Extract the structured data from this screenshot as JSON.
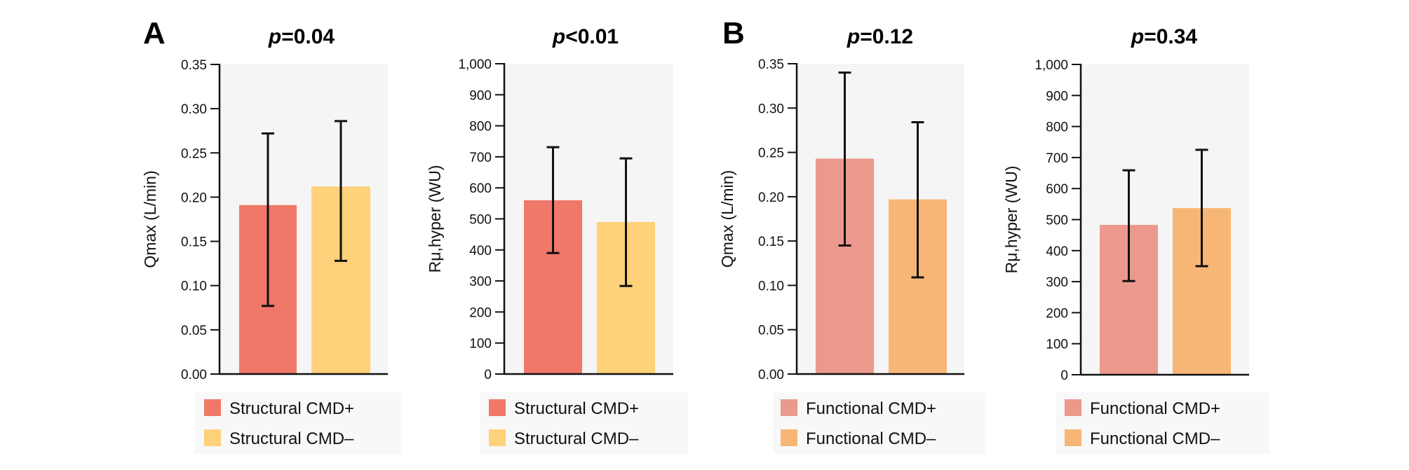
{
  "panels": [
    {
      "letter": "A"
    },
    {
      "letter": "B"
    }
  ],
  "colors": {
    "plot_background": "#F5F5F5",
    "legend_background": "#F8F8F8",
    "axis": "#111111",
    "structural_plus": "#EF7869",
    "structural_minus": "#FED17A",
    "functional_plus": "#EB998D",
    "functional_minus": "#F8B676"
  },
  "chart_data": [
    {
      "type": "bar",
      "panel": "A",
      "title_p": "p",
      "title_rest": "=0.04",
      "ylabel": "Qmax (L/min)",
      "ylim": [
        0,
        0.35
      ],
      "yticks": [
        "0.00",
        "0.05",
        "0.10",
        "0.15",
        "0.20",
        "0.25",
        "0.30",
        "0.35"
      ],
      "ytick_values": [
        0,
        0.05,
        0.1,
        0.15,
        0.2,
        0.25,
        0.3,
        0.35
      ],
      "categories": [
        "Structural CMD+",
        "Structural CMD–"
      ],
      "values": [
        0.191,
        0.212
      ],
      "error_low": [
        0.077,
        0.128
      ],
      "error_high": [
        0.272,
        0.286
      ],
      "bar_colors": [
        "#EF7869",
        "#FED17A"
      ],
      "legend": [
        "Structural CMD+",
        "Structural CMD–"
      ],
      "legend_position": "bottom",
      "grid": false
    },
    {
      "type": "bar",
      "panel": "A",
      "title_p": "p",
      "title_rest": "<0.01",
      "ylabel": "Rμ,hyper (WU)",
      "ylim": [
        0,
        1000
      ],
      "yticks": [
        "0",
        "100",
        "200",
        "300",
        "400",
        "500",
        "600",
        "700",
        "800",
        "900",
        "1,000"
      ],
      "ytick_values": [
        0,
        100,
        200,
        300,
        400,
        500,
        600,
        700,
        800,
        900,
        1000
      ],
      "categories": [
        "Structural CMD+",
        "Structural CMD–"
      ],
      "values": [
        560,
        490
      ],
      "error_low": [
        390,
        284
      ],
      "error_high": [
        731,
        695
      ],
      "bar_colors": [
        "#EF7869",
        "#FED17A"
      ],
      "legend": [
        "Structural CMD+",
        "Structural CMD–"
      ],
      "legend_position": "bottom",
      "grid": false
    },
    {
      "type": "bar",
      "panel": "B",
      "title_p": "p",
      "title_rest": "=0.12",
      "ylabel": "Qmax (L/min)",
      "ylim": [
        0,
        0.35
      ],
      "yticks": [
        "0.00",
        "0.05",
        "0.10",
        "0.15",
        "0.20",
        "0.25",
        "0.30",
        "0.35"
      ],
      "ytick_values": [
        0,
        0.05,
        0.1,
        0.15,
        0.2,
        0.25,
        0.3,
        0.35
      ],
      "categories": [
        "Functional CMD+",
        "Functional CMD–"
      ],
      "values": [
        0.243,
        0.197
      ],
      "error_low": [
        0.145,
        0.109
      ],
      "error_high": [
        0.34,
        0.284
      ],
      "bar_colors": [
        "#EB998D",
        "#F8B676"
      ],
      "legend": [
        "Functional CMD+",
        "Functional CMD–"
      ],
      "legend_position": "bottom",
      "grid": false
    },
    {
      "type": "bar",
      "panel": "B",
      "title_p": "p",
      "title_rest": "=0.34",
      "ylabel": "Rμ,hyper (WU)",
      "ylim": [
        0,
        1000
      ],
      "yticks": [
        "0",
        "100",
        "200",
        "300",
        "400",
        "500",
        "600",
        "700",
        "800",
        "900",
        "1,000"
      ],
      "ytick_values": [
        0,
        100,
        200,
        300,
        400,
        500,
        600,
        700,
        800,
        900,
        1000
      ],
      "categories": [
        "Functional CMD+",
        "Functional CMD–"
      ],
      "values": [
        483,
        537
      ],
      "error_low": [
        302,
        350
      ],
      "error_high": [
        659,
        725
      ],
      "bar_colors": [
        "#EB998D",
        "#F8B676"
      ],
      "legend": [
        "Functional CMD+",
        "Functional CMD–"
      ],
      "legend_position": "bottom",
      "grid": false
    }
  ]
}
